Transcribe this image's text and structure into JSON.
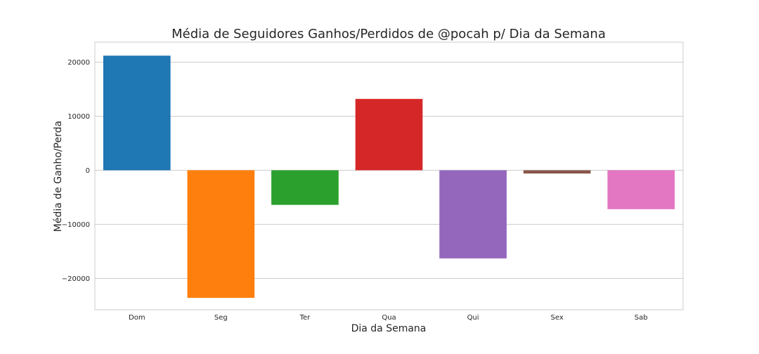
{
  "chart_data": {
    "type": "bar",
    "title": "Média de Seguidores Ganhos/Perdidos de @pocah p/ Dia da Semana",
    "xlabel": "Dia da Semana",
    "ylabel": "Média de Ganho/Perda",
    "categories": [
      "Dom",
      "Seg",
      "Ter",
      "Qua",
      "Qui",
      "Sex",
      "Sab"
    ],
    "values": [
      21200,
      -23600,
      -6400,
      13200,
      -16300,
      -600,
      -7200
    ],
    "colors": [
      "#1f77b4",
      "#ff7f0e",
      "#2ca02c",
      "#d62728",
      "#9467bd",
      "#8c564b",
      "#e377c2"
    ],
    "ylim": [
      -25800,
      23700
    ],
    "yticks": [
      20000,
      10000,
      0,
      -10000,
      -20000
    ],
    "ytick_labels": [
      "20000",
      "10000",
      "0",
      "−10000",
      "−20000"
    ],
    "grid": true,
    "style": "seaborn-whitegrid"
  }
}
